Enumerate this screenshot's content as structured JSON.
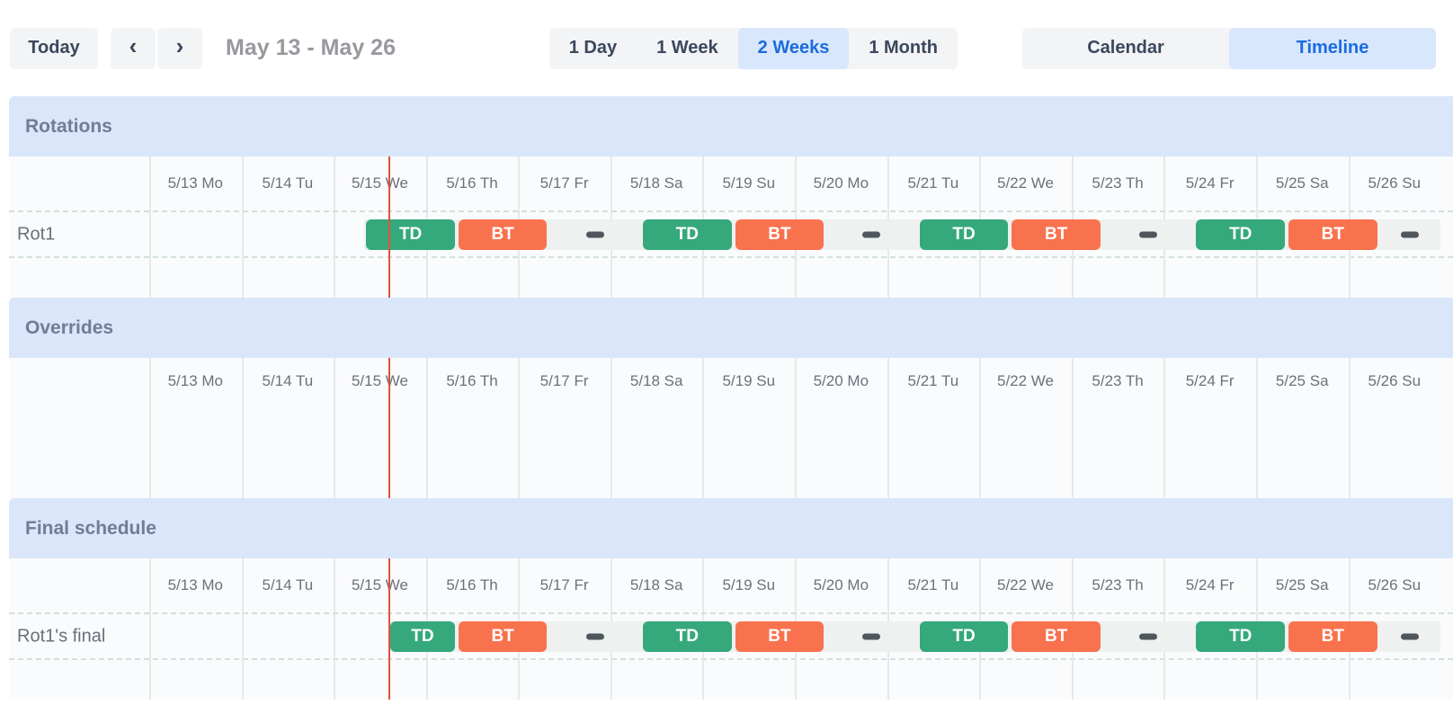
{
  "toolbar": {
    "today_label": "Today",
    "prev_icon": "chevron-left",
    "next_icon": "chevron-right",
    "prev_glyph": "‹",
    "next_glyph": "›",
    "date_range": "May 13 - May 26",
    "zoom_options": [
      {
        "label": "1 Day",
        "selected": false
      },
      {
        "label": "1 Week",
        "selected": false
      },
      {
        "label": "2 Weeks",
        "selected": true
      },
      {
        "label": "1 Month",
        "selected": false
      }
    ],
    "view_options": [
      {
        "label": "Calendar",
        "selected": false
      },
      {
        "label": "Timeline",
        "selected": true
      }
    ]
  },
  "timeline": {
    "days": [
      "5/13 Mo",
      "5/14 Tu",
      "5/15 We",
      "5/16 Th",
      "5/17 Fr",
      "5/18 Sa",
      "5/19 Su",
      "5/20 Mo",
      "5/21 Tu",
      "5/22 We",
      "5/23 Th",
      "5/24 Fr",
      "5/25 Sa",
      "5/26 Su"
    ],
    "total_days": 14,
    "now_day": 2.593,
    "sections": [
      {
        "title": "Rotations",
        "kind": "rows",
        "rows": [
          {
            "label": "Rot1",
            "band_start": 2.3333,
            "band_end": 14,
            "segments": [
              {
                "type": "shift",
                "label": "TD",
                "color": "#35a87c",
                "start": 2.3333,
                "end": 3.3333
              },
              {
                "type": "shift",
                "label": "BT",
                "color": "#f9724e",
                "start": 3.3333,
                "end": 4.3333
              },
              {
                "type": "gap",
                "start": 4.3333,
                "end": 5.3333
              },
              {
                "type": "shift",
                "label": "TD",
                "color": "#35a87c",
                "start": 5.3333,
                "end": 6.3333
              },
              {
                "type": "shift",
                "label": "BT",
                "color": "#f9724e",
                "start": 6.3333,
                "end": 7.3333
              },
              {
                "type": "gap",
                "start": 7.3333,
                "end": 8.3333
              },
              {
                "type": "shift",
                "label": "TD",
                "color": "#35a87c",
                "start": 8.3333,
                "end": 9.3333
              },
              {
                "type": "shift",
                "label": "BT",
                "color": "#f9724e",
                "start": 9.3333,
                "end": 10.3333
              },
              {
                "type": "gap",
                "start": 10.3333,
                "end": 11.3333
              },
              {
                "type": "shift",
                "label": "TD",
                "color": "#35a87c",
                "start": 11.3333,
                "end": 12.3333
              },
              {
                "type": "shift",
                "label": "BT",
                "color": "#f9724e",
                "start": 12.3333,
                "end": 13.3333
              },
              {
                "type": "gap",
                "start": 13.3333,
                "end": 14
              }
            ]
          }
        ]
      },
      {
        "title": "Overrides",
        "kind": "tall",
        "rows": []
      },
      {
        "title": "Final schedule",
        "kind": "rows",
        "rows": [
          {
            "label": "Rot1's final",
            "band_start": 2.593,
            "band_end": 14,
            "segments": [
              {
                "type": "shift",
                "label": "TD",
                "color": "#35a87c",
                "start": 2.593,
                "end": 3.3333
              },
              {
                "type": "shift",
                "label": "BT",
                "color": "#f9724e",
                "start": 3.3333,
                "end": 4.3333
              },
              {
                "type": "gap",
                "start": 4.3333,
                "end": 5.3333
              },
              {
                "type": "shift",
                "label": "TD",
                "color": "#35a87c",
                "start": 5.3333,
                "end": 6.3333
              },
              {
                "type": "shift",
                "label": "BT",
                "color": "#f9724e",
                "start": 6.3333,
                "end": 7.3333
              },
              {
                "type": "gap",
                "start": 7.3333,
                "end": 8.3333
              },
              {
                "type": "shift",
                "label": "TD",
                "color": "#35a87c",
                "start": 8.3333,
                "end": 9.3333
              },
              {
                "type": "shift",
                "label": "BT",
                "color": "#f9724e",
                "start": 9.3333,
                "end": 10.3333
              },
              {
                "type": "gap",
                "start": 10.3333,
                "end": 11.3333
              },
              {
                "type": "shift",
                "label": "TD",
                "color": "#35a87c",
                "start": 11.3333,
                "end": 12.3333
              },
              {
                "type": "shift",
                "label": "BT",
                "color": "#f9724e",
                "start": 12.3333,
                "end": 13.3333
              },
              {
                "type": "gap",
                "start": 13.3333,
                "end": 14
              }
            ]
          }
        ]
      }
    ]
  },
  "colors": {
    "shift_green": "#35a87c",
    "shift_orange": "#f9724e",
    "now_line_red": "#e0523c",
    "section_header_blue": "#dae6fa",
    "selected_button_bg": "#d9e7fc",
    "selected_button_text": "#1a6ce0",
    "button_bg": "#f3f4f6",
    "button_text": "#3b475c",
    "gap_dash": "#4f565c"
  }
}
